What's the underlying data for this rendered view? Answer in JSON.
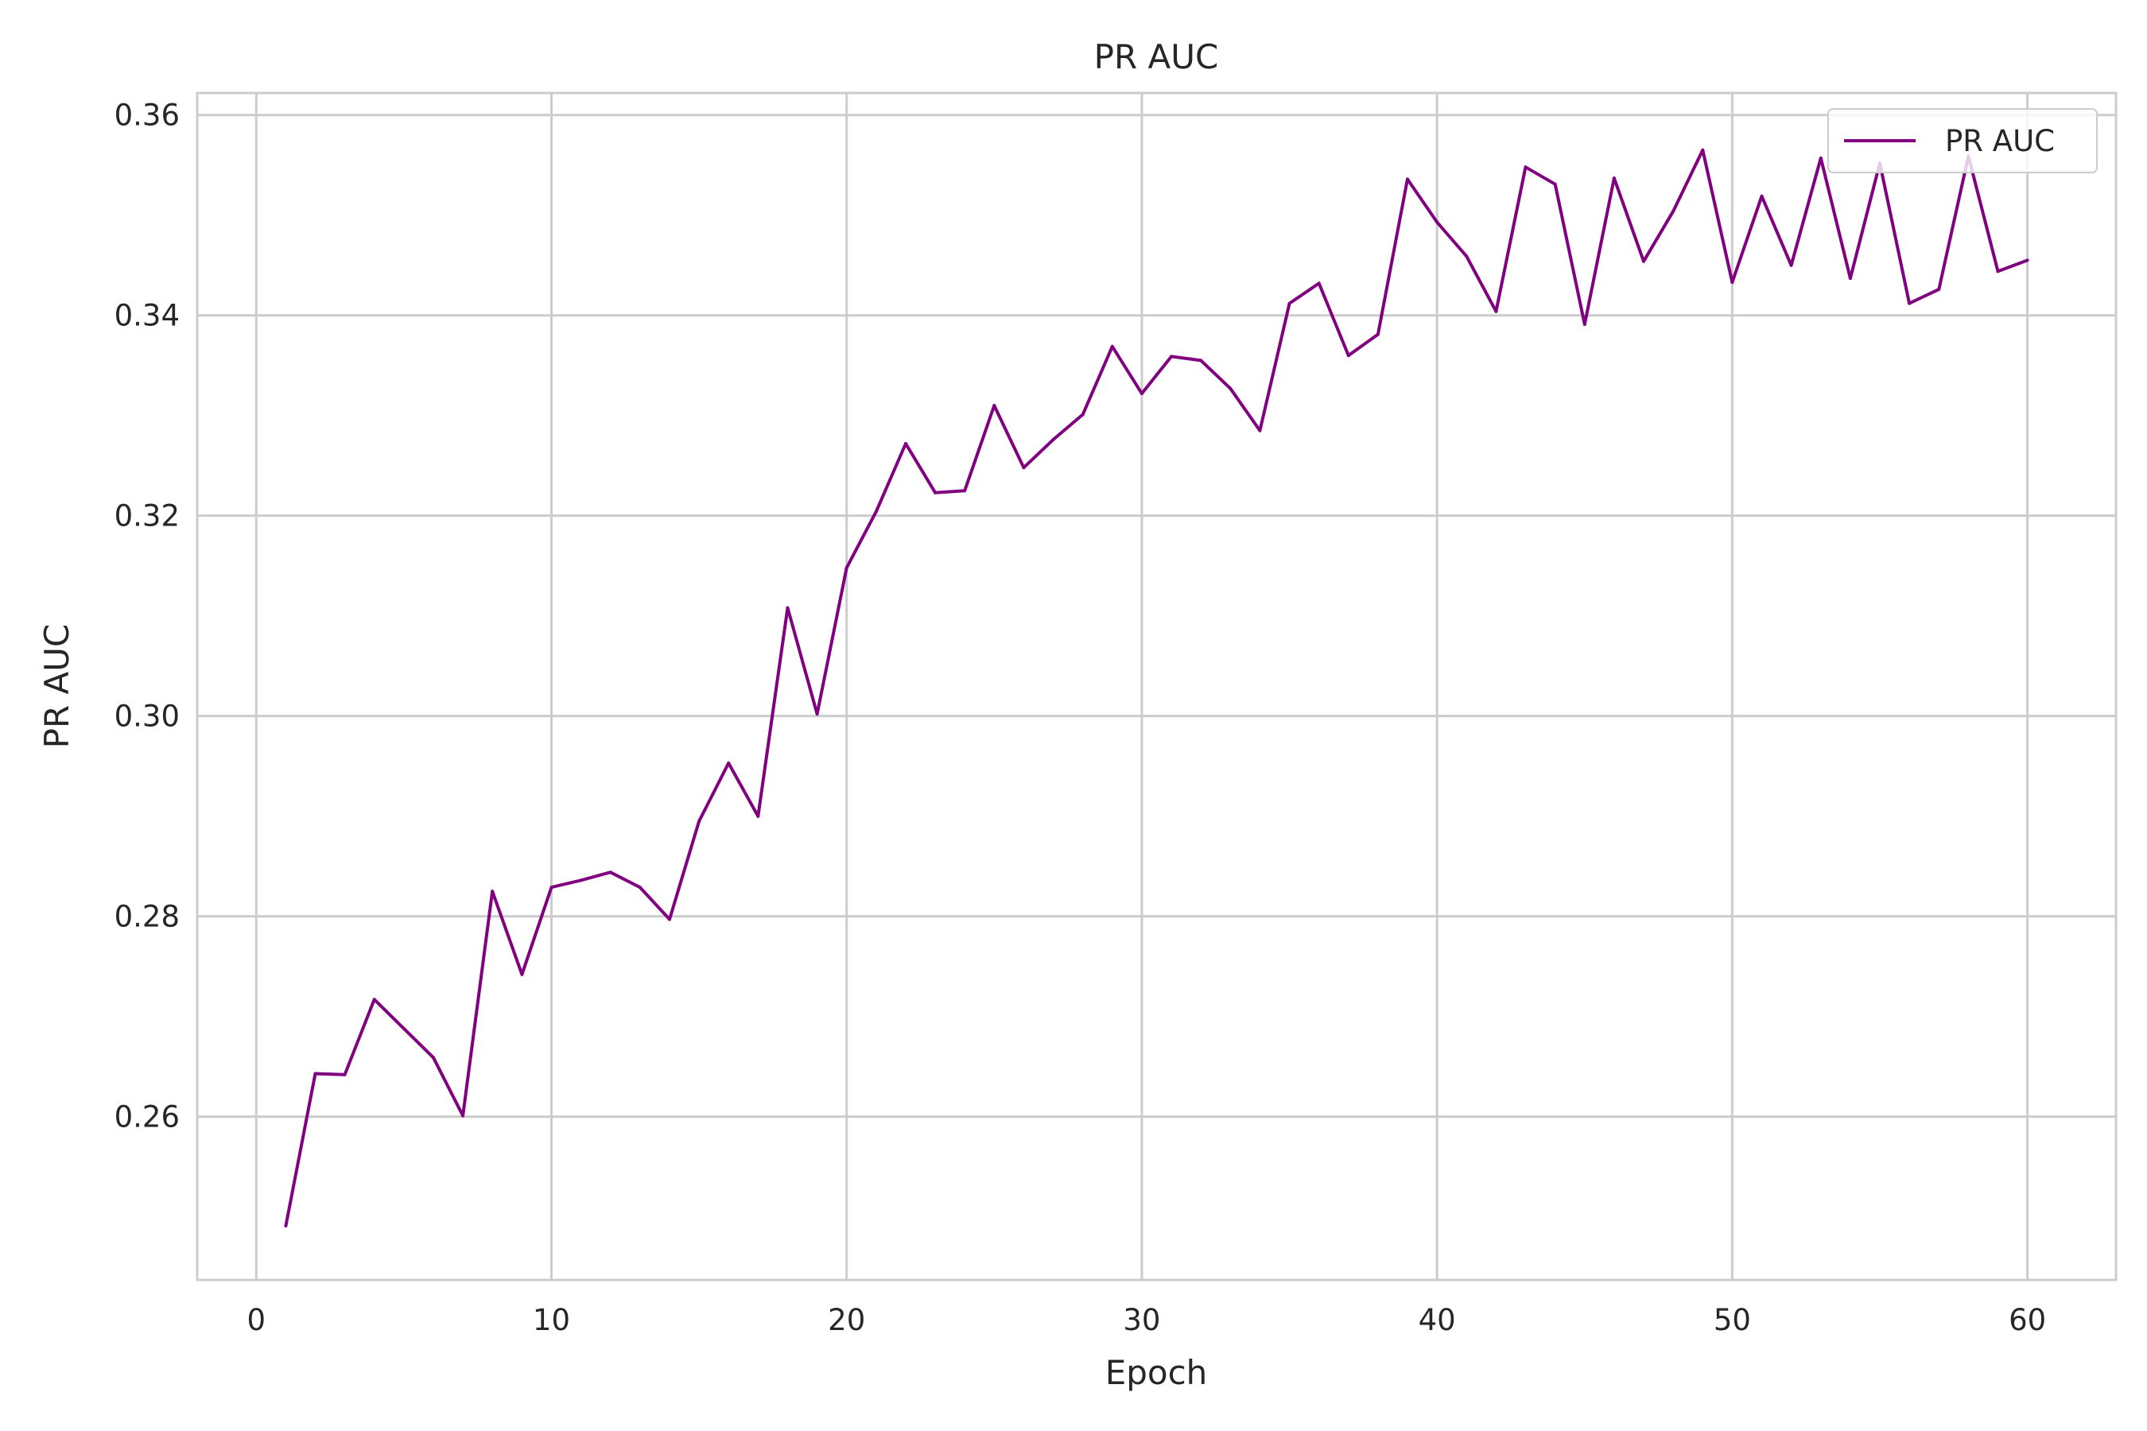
{
  "chart_data": {
    "type": "line",
    "title": "PR AUC",
    "xlabel": "Epoch",
    "ylabel": "PR AUC",
    "xlim": [
      -2,
      63
    ],
    "ylim": [
      0.2437,
      0.3622
    ],
    "xticks": [
      0,
      10,
      20,
      30,
      40,
      50,
      60
    ],
    "xtick_labels": [
      "0",
      "10",
      "20",
      "30",
      "40",
      "50",
      "60"
    ],
    "yticks": [
      0.26,
      0.28,
      0.3,
      0.32,
      0.34,
      0.36
    ],
    "ytick_labels": [
      "0.26",
      "0.28",
      "0.30",
      "0.32",
      "0.34",
      "0.36"
    ],
    "grid": true,
    "legend_position": "top-right",
    "series": [
      {
        "name": "PR AUC",
        "color": "#800080",
        "x": [
          1,
          2,
          3,
          4,
          5,
          6,
          7,
          8,
          9,
          10,
          11,
          12,
          13,
          14,
          15,
          16,
          17,
          18,
          19,
          20,
          21,
          22,
          23,
          24,
          25,
          26,
          27,
          28,
          29,
          30,
          31,
          32,
          33,
          34,
          35,
          36,
          37,
          38,
          39,
          40,
          41,
          42,
          43,
          44,
          45,
          46,
          47,
          48,
          49,
          50,
          51,
          52,
          53,
          54,
          55,
          56,
          57,
          58,
          59,
          60
        ],
        "values": [
          0.2491,
          0.2643,
          0.2642,
          0.2717,
          0.2688,
          0.2659,
          0.2601,
          0.2825,
          0.2742,
          0.2829,
          0.2836,
          0.2844,
          0.2829,
          0.2797,
          0.2895,
          0.2953,
          0.29,
          0.3108,
          0.3002,
          0.3148,
          0.3204,
          0.3272,
          0.3223,
          0.3225,
          0.331,
          0.3248,
          0.3276,
          0.3301,
          0.3369,
          0.3322,
          0.3359,
          0.3355,
          0.3327,
          0.3285,
          0.3412,
          0.3432,
          0.336,
          0.3381,
          0.3536,
          0.3493,
          0.3459,
          0.3404,
          0.3548,
          0.3531,
          0.3391,
          0.3537,
          0.3454,
          0.3504,
          0.3565,
          0.3433,
          0.3519,
          0.345,
          0.3557,
          0.3437,
          0.3552,
          0.3412,
          0.3426,
          0.3559,
          0.3444,
          0.3455
        ]
      }
    ]
  }
}
